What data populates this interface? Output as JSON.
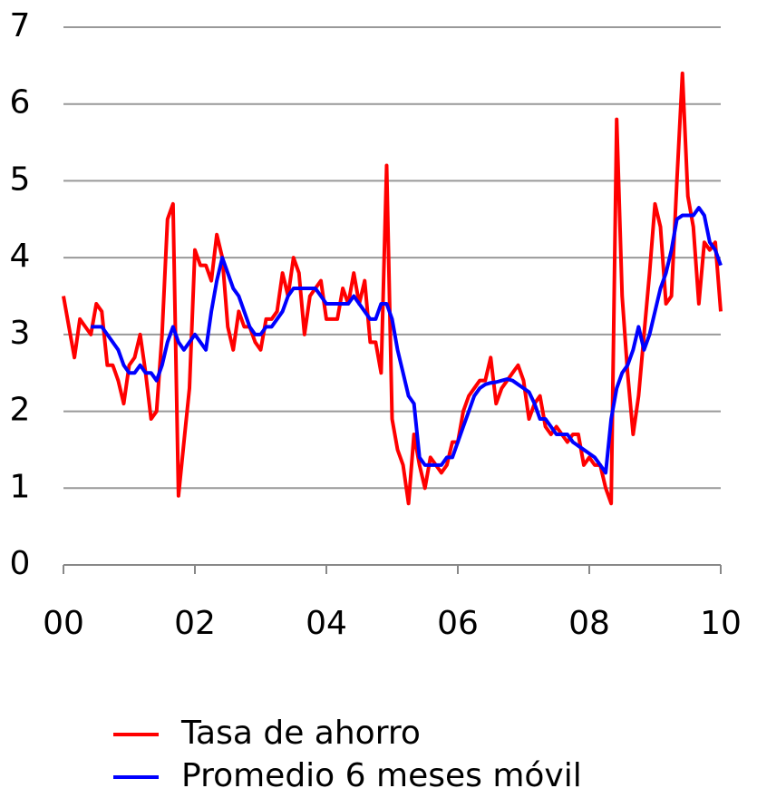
{
  "chart_data": {
    "type": "line",
    "x": [
      0,
      0.083,
      0.167,
      0.25,
      0.333,
      0.417,
      0.5,
      0.583,
      0.667,
      0.75,
      0.833,
      0.917,
      1,
      1.083,
      1.167,
      1.25,
      1.333,
      1.417,
      1.5,
      1.583,
      1.667,
      1.75,
      1.833,
      1.917,
      2,
      2.083,
      2.167,
      2.25,
      2.333,
      2.417,
      2.5,
      2.583,
      2.667,
      2.75,
      2.833,
      2.917,
      3,
      3.083,
      3.167,
      3.25,
      3.333,
      3.417,
      3.5,
      3.583,
      3.667,
      3.75,
      3.833,
      3.917,
      4,
      4.083,
      4.167,
      4.25,
      4.333,
      4.417,
      4.5,
      4.583,
      4.667,
      4.75,
      4.833,
      4.917,
      5,
      5.083,
      5.167,
      5.25,
      5.333,
      5.417,
      5.5,
      5.583,
      5.667,
      5.75,
      5.833,
      5.917,
      6,
      6.083,
      6.167,
      6.25,
      6.333,
      6.417,
      6.5,
      6.583,
      6.667,
      6.75,
      6.833,
      6.917,
      7,
      7.083,
      7.167,
      7.25,
      7.333,
      7.417,
      7.5,
      7.583,
      7.667,
      7.75,
      7.833,
      7.917,
      8,
      8.083,
      8.167,
      8.25,
      8.333,
      8.417,
      8.5,
      8.583,
      8.667,
      8.75,
      8.833,
      8.917,
      9,
      9.083,
      9.167,
      9.25,
      9.333,
      9.417,
      9.5,
      9.583,
      9.667,
      9.75,
      9.833,
      9.917,
      10
    ],
    "series": [
      {
        "name": "Tasa de ahorro",
        "color": "#ff0000",
        "values": [
          3.5,
          3.1,
          2.7,
          3.2,
          3.1,
          3.0,
          3.4,
          3.3,
          2.6,
          2.6,
          2.4,
          2.1,
          2.6,
          2.7,
          3.0,
          2.5,
          1.9,
          2.0,
          3.0,
          4.5,
          4.7,
          0.9,
          1.6,
          2.3,
          4.1,
          3.9,
          3.9,
          3.7,
          4.3,
          4.0,
          3.1,
          2.8,
          3.3,
          3.1,
          3.1,
          2.9,
          2.8,
          3.2,
          3.2,
          3.3,
          3.8,
          3.5,
          4.0,
          3.8,
          3.0,
          3.5,
          3.6,
          3.7,
          3.2,
          3.2,
          3.2,
          3.6,
          3.4,
          3.8,
          3.4,
          3.7,
          2.9,
          2.9,
          2.5,
          5.2,
          1.9,
          1.5,
          1.3,
          0.8,
          1.7,
          1.3,
          1.0,
          1.4,
          1.3,
          1.2,
          1.3,
          1.6,
          1.6,
          2.0,
          2.2,
          2.3,
          2.4,
          2.4,
          2.7,
          2.1,
          2.3,
          2.4,
          2.5,
          2.6,
          2.4,
          1.9,
          2.1,
          2.2,
          1.8,
          1.7,
          1.8,
          1.7,
          1.6,
          1.7,
          1.7,
          1.3,
          1.4,
          1.3,
          1.3,
          1.0,
          0.8,
          5.8,
          3.5,
          2.5,
          1.7,
          2.2,
          3.0,
          3.8,
          4.7,
          4.4,
          3.4,
          3.5,
          5.0,
          6.4,
          4.8,
          4.4,
          3.4,
          4.2,
          4.1,
          4.2,
          3.3
        ]
      },
      {
        "name": "Promedio 6 meses móvil",
        "color": "#0000ff",
        "values": [
          null,
          null,
          null,
          null,
          null,
          3.1,
          3.1,
          3.1,
          3.0,
          2.9,
          2.8,
          2.6,
          2.5,
          2.5,
          2.6,
          2.5,
          2.5,
          2.4,
          2.6,
          2.9,
          3.1,
          2.9,
          2.8,
          2.9,
          3.0,
          2.9,
          2.8,
          3.3,
          3.7,
          4.0,
          3.8,
          3.6,
          3.5,
          3.3,
          3.1,
          3.0,
          3.0,
          3.1,
          3.1,
          3.2,
          3.3,
          3.5,
          3.6,
          3.6,
          3.6,
          3.6,
          3.6,
          3.5,
          3.4,
          3.4,
          3.4,
          3.4,
          3.4,
          3.5,
          3.4,
          3.3,
          3.2,
          3.2,
          3.4,
          3.4,
          3.2,
          2.8,
          2.5,
          2.2,
          2.1,
          1.4,
          1.3,
          1.3,
          1.3,
          1.3,
          1.4,
          1.4,
          1.6,
          1.8,
          2.0,
          2.2,
          2.3,
          2.35,
          2.37,
          2.38,
          2.4,
          2.42,
          2.4,
          2.35,
          2.3,
          2.25,
          2.1,
          1.9,
          1.9,
          1.8,
          1.7,
          1.7,
          1.7,
          1.6,
          1.55,
          1.5,
          1.45,
          1.4,
          1.3,
          1.2,
          1.9,
          2.3,
          2.5,
          2.6,
          2.8,
          3.1,
          2.8,
          3.0,
          3.3,
          3.6,
          3.8,
          4.1,
          4.5,
          4.55,
          4.55,
          4.55,
          4.65,
          4.55,
          4.2,
          4.1,
          3.9
        ]
      }
    ],
    "xlim": [
      0,
      10
    ],
    "xticks": [
      {
        "value": 0,
        "label": "00"
      },
      {
        "value": 2,
        "label": "02"
      },
      {
        "value": 4,
        "label": "04"
      },
      {
        "value": 6,
        "label": "06"
      },
      {
        "value": 8,
        "label": "08"
      },
      10
    ],
    "ylim": [
      0,
      7
    ],
    "yticks": [
      0,
      1,
      2,
      3,
      4,
      5,
      6,
      7
    ],
    "grid": true
  }
}
